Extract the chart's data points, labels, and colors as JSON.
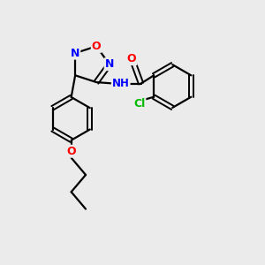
{
  "bg_color": "#ebebeb",
  "bond_color": "#000000",
  "atom_colors": {
    "O": "#ff0000",
    "N": "#0000ff",
    "Cl": "#00bb00",
    "NH": "#0000ff",
    "H": "#00bb00"
  },
  "figsize": [
    3.0,
    3.0
  ],
  "dpi": 100,
  "lw": 1.6,
  "lw_double": 1.4,
  "fontsize": 8.5
}
